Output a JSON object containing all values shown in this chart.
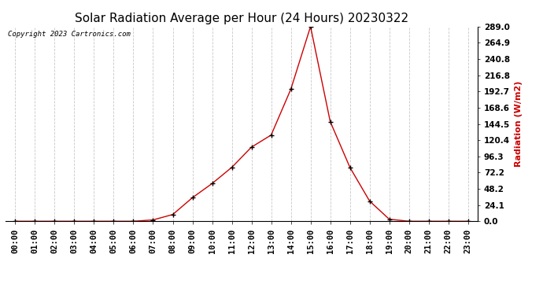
{
  "title": "Solar Radiation Average per Hour (24 Hours) 20230322",
  "copyright_text": "Copyright 2023 Cartronics.com",
  "ylabel": "Radiation (W/m2)",
  "hours": [
    "00:00",
    "01:00",
    "02:00",
    "03:00",
    "04:00",
    "05:00",
    "06:00",
    "07:00",
    "08:00",
    "09:00",
    "10:00",
    "11:00",
    "12:00",
    "13:00",
    "14:00",
    "15:00",
    "16:00",
    "17:00",
    "18:00",
    "19:00",
    "20:00",
    "21:00",
    "22:00",
    "23:00"
  ],
  "values": [
    0.0,
    0.0,
    0.0,
    0.0,
    0.0,
    0.0,
    0.0,
    2.0,
    10.0,
    35.0,
    56.0,
    80.0,
    110.0,
    128.0,
    196.0,
    289.0,
    148.0,
    80.0,
    30.0,
    3.0,
    0.0,
    0.0,
    0.0,
    0.0
  ],
  "line_color": "#cc0000",
  "marker_color": "#000000",
  "background_color": "#ffffff",
  "grid_color": "#c8c8c8",
  "title_fontsize": 11,
  "label_fontsize": 8,
  "tick_fontsize": 7.5,
  "yticks": [
    0.0,
    24.1,
    48.2,
    72.2,
    96.3,
    120.4,
    144.5,
    168.6,
    192.7,
    216.8,
    240.8,
    264.9,
    289.0
  ],
  "ylim": [
    0,
    289.0
  ],
  "ylabel_color": "#cc0000",
  "copyright_color": "#000000"
}
